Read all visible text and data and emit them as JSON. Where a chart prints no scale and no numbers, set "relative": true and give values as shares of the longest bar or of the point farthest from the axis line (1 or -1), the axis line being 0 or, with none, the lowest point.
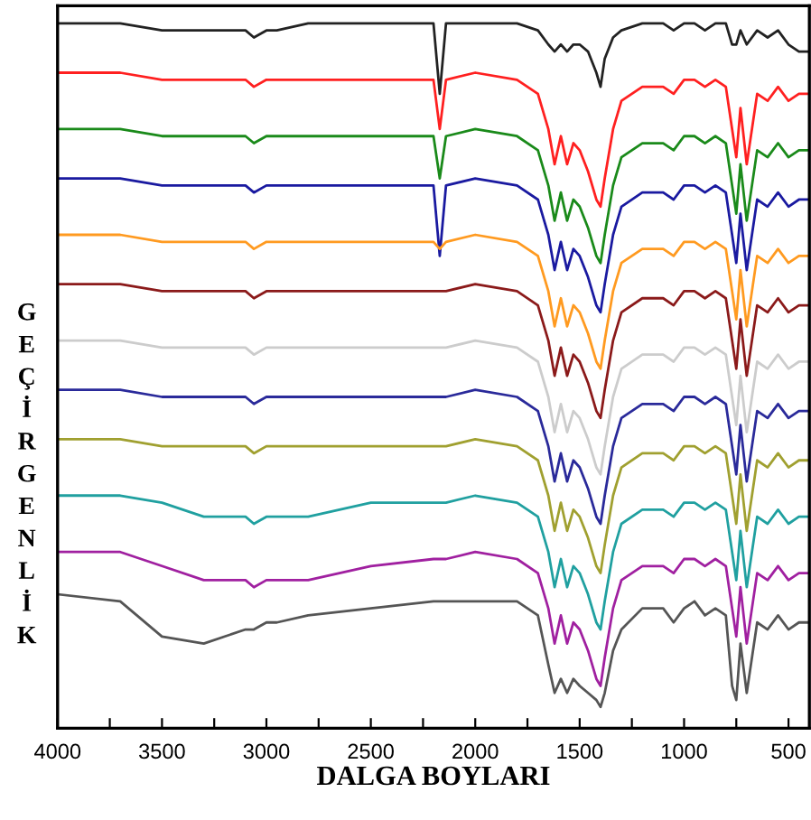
{
  "chart_data": {
    "type": "line",
    "xlabel": "DALGA BOYLARI",
    "ylabel": "GEÇİRGENLİK",
    "relative": true,
    "tick_labels": "x",
    "grid": false,
    "legend": false,
    "marker": "none",
    "line_style": "solid",
    "xlim": [
      4000,
      400
    ],
    "xticks": [
      4000,
      {
        "value": 3750,
        "label": null
      },
      3500,
      {
        "value": 3250,
        "label": null
      },
      3000,
      {
        "value": 2750,
        "label": null
      },
      2500,
      {
        "value": 2250,
        "label": null
      },
      2000,
      {
        "value": 1750,
        "label": null
      },
      1500,
      {
        "value": 1250,
        "label": null
      },
      1000,
      {
        "value": 750,
        "label": null
      },
      500
    ],
    "x": [
      4000,
      3700,
      3500,
      3300,
      3100,
      3060,
      3000,
      2950,
      2800,
      2500,
      2200,
      2170,
      2140,
      2000,
      1800,
      1700,
      1650,
      1620,
      1590,
      1560,
      1530,
      1500,
      1460,
      1420,
      1400,
      1380,
      1340,
      1300,
      1200,
      1100,
      1050,
      1000,
      950,
      900,
      850,
      800,
      770,
      750,
      730,
      700,
      650,
      600,
      550,
      500,
      450,
      410
    ],
    "series": [
      {
        "color": "#222222",
        "values": [
          1.0,
          1.0,
          0.99,
          0.99,
          0.99,
          0.98,
          0.99,
          0.99,
          1.0,
          1.0,
          1.0,
          0.9,
          1.0,
          1.0,
          1.0,
          0.99,
          0.97,
          0.96,
          0.97,
          0.96,
          0.97,
          0.97,
          0.96,
          0.93,
          0.91,
          0.95,
          0.98,
          0.99,
          1.0,
          1.0,
          0.99,
          1.0,
          1.0,
          0.99,
          1.0,
          1.0,
          0.97,
          0.97,
          0.99,
          0.97,
          0.99,
          0.98,
          0.99,
          0.97,
          0.96,
          0.96
        ]
      },
      {
        "color": "#ff2020",
        "values": [
          0.93,
          0.93,
          0.92,
          0.92,
          0.92,
          0.91,
          0.92,
          0.92,
          0.92,
          0.92,
          0.92,
          0.85,
          0.92,
          0.93,
          0.92,
          0.9,
          0.85,
          0.8,
          0.84,
          0.8,
          0.83,
          0.82,
          0.79,
          0.75,
          0.74,
          0.78,
          0.85,
          0.89,
          0.91,
          0.91,
          0.9,
          0.92,
          0.92,
          0.91,
          0.92,
          0.91,
          0.85,
          0.81,
          0.88,
          0.8,
          0.9,
          0.89,
          0.91,
          0.89,
          0.9,
          0.9
        ]
      },
      {
        "color": "#1a8a1a",
        "values": [
          0.85,
          0.85,
          0.84,
          0.84,
          0.84,
          0.83,
          0.84,
          0.84,
          0.84,
          0.84,
          0.84,
          0.78,
          0.84,
          0.85,
          0.84,
          0.82,
          0.77,
          0.72,
          0.76,
          0.72,
          0.75,
          0.74,
          0.71,
          0.67,
          0.66,
          0.7,
          0.77,
          0.81,
          0.83,
          0.83,
          0.82,
          0.84,
          0.84,
          0.83,
          0.84,
          0.83,
          0.77,
          0.73,
          0.8,
          0.72,
          0.82,
          0.81,
          0.83,
          0.81,
          0.82,
          0.82
        ]
      },
      {
        "color": "#1a1aa0",
        "values": [
          0.78,
          0.78,
          0.77,
          0.77,
          0.77,
          0.76,
          0.77,
          0.77,
          0.77,
          0.77,
          0.77,
          0.67,
          0.77,
          0.78,
          0.77,
          0.75,
          0.7,
          0.65,
          0.69,
          0.65,
          0.68,
          0.67,
          0.64,
          0.6,
          0.59,
          0.63,
          0.7,
          0.74,
          0.76,
          0.76,
          0.75,
          0.77,
          0.77,
          0.76,
          0.77,
          0.76,
          0.7,
          0.66,
          0.73,
          0.65,
          0.75,
          0.74,
          0.76,
          0.74,
          0.75,
          0.75
        ]
      },
      {
        "color": "#ff9a20",
        "values": [
          0.7,
          0.7,
          0.69,
          0.69,
          0.69,
          0.68,
          0.69,
          0.69,
          0.69,
          0.69,
          0.69,
          0.68,
          0.69,
          0.7,
          0.69,
          0.67,
          0.62,
          0.57,
          0.61,
          0.57,
          0.6,
          0.59,
          0.56,
          0.52,
          0.51,
          0.55,
          0.62,
          0.66,
          0.68,
          0.68,
          0.67,
          0.69,
          0.69,
          0.68,
          0.69,
          0.68,
          0.62,
          0.58,
          0.65,
          0.57,
          0.67,
          0.66,
          0.68,
          0.66,
          0.67,
          0.67
        ]
      },
      {
        "color": "#8b1a1a",
        "values": [
          0.63,
          0.63,
          0.62,
          0.62,
          0.62,
          0.61,
          0.62,
          0.62,
          0.62,
          0.62,
          0.62,
          0.62,
          0.62,
          0.63,
          0.62,
          0.6,
          0.55,
          0.5,
          0.54,
          0.5,
          0.53,
          0.52,
          0.49,
          0.45,
          0.44,
          0.48,
          0.55,
          0.59,
          0.61,
          0.61,
          0.6,
          0.62,
          0.62,
          0.61,
          0.62,
          0.61,
          0.55,
          0.51,
          0.58,
          0.5,
          0.6,
          0.59,
          0.61,
          0.59,
          0.6,
          0.6
        ]
      },
      {
        "color": "#cccccc",
        "values": [
          0.55,
          0.55,
          0.54,
          0.54,
          0.54,
          0.53,
          0.54,
          0.54,
          0.54,
          0.54,
          0.54,
          0.54,
          0.54,
          0.55,
          0.54,
          0.52,
          0.47,
          0.42,
          0.46,
          0.42,
          0.45,
          0.44,
          0.41,
          0.37,
          0.36,
          0.4,
          0.47,
          0.51,
          0.53,
          0.53,
          0.52,
          0.54,
          0.54,
          0.53,
          0.54,
          0.53,
          0.47,
          0.43,
          0.5,
          0.42,
          0.52,
          0.51,
          0.53,
          0.51,
          0.52,
          0.52
        ]
      },
      {
        "color": "#2a2a9a",
        "values": [
          0.48,
          0.48,
          0.47,
          0.47,
          0.47,
          0.46,
          0.47,
          0.47,
          0.47,
          0.47,
          0.47,
          0.47,
          0.47,
          0.48,
          0.47,
          0.45,
          0.4,
          0.35,
          0.39,
          0.35,
          0.38,
          0.37,
          0.34,
          0.3,
          0.29,
          0.33,
          0.4,
          0.44,
          0.46,
          0.46,
          0.45,
          0.47,
          0.47,
          0.46,
          0.47,
          0.46,
          0.4,
          0.36,
          0.43,
          0.35,
          0.45,
          0.44,
          0.46,
          0.44,
          0.45,
          0.45
        ]
      },
      {
        "color": "#a0a030",
        "values": [
          0.41,
          0.41,
          0.4,
          0.4,
          0.4,
          0.39,
          0.4,
          0.4,
          0.4,
          0.4,
          0.4,
          0.4,
          0.4,
          0.41,
          0.4,
          0.38,
          0.33,
          0.28,
          0.32,
          0.28,
          0.31,
          0.3,
          0.27,
          0.23,
          0.22,
          0.26,
          0.33,
          0.37,
          0.39,
          0.39,
          0.38,
          0.4,
          0.4,
          0.39,
          0.4,
          0.39,
          0.33,
          0.29,
          0.36,
          0.28,
          0.38,
          0.37,
          0.39,
          0.37,
          0.38,
          0.38
        ]
      },
      {
        "color": "#20a0a0",
        "values": [
          0.33,
          0.33,
          0.32,
          0.3,
          0.3,
          0.29,
          0.3,
          0.3,
          0.3,
          0.32,
          0.32,
          0.32,
          0.32,
          0.33,
          0.32,
          0.3,
          0.25,
          0.2,
          0.24,
          0.2,
          0.23,
          0.22,
          0.19,
          0.15,
          0.14,
          0.18,
          0.25,
          0.29,
          0.31,
          0.31,
          0.3,
          0.32,
          0.32,
          0.31,
          0.32,
          0.31,
          0.25,
          0.21,
          0.28,
          0.2,
          0.3,
          0.29,
          0.31,
          0.29,
          0.3,
          0.3
        ]
      },
      {
        "color": "#a020a0",
        "values": [
          0.25,
          0.25,
          0.23,
          0.21,
          0.21,
          0.2,
          0.21,
          0.21,
          0.21,
          0.23,
          0.24,
          0.24,
          0.24,
          0.25,
          0.24,
          0.22,
          0.17,
          0.12,
          0.16,
          0.12,
          0.15,
          0.14,
          0.11,
          0.07,
          0.06,
          0.1,
          0.17,
          0.21,
          0.23,
          0.23,
          0.22,
          0.24,
          0.24,
          0.23,
          0.24,
          0.23,
          0.17,
          0.13,
          0.2,
          0.12,
          0.22,
          0.21,
          0.23,
          0.21,
          0.22,
          0.22
        ]
      },
      {
        "color": "#555555",
        "values": [
          0.19,
          0.18,
          0.13,
          0.12,
          0.14,
          0.14,
          0.15,
          0.15,
          0.16,
          0.17,
          0.18,
          0.18,
          0.18,
          0.18,
          0.18,
          0.16,
          0.09,
          0.05,
          0.07,
          0.05,
          0.07,
          0.06,
          0.05,
          0.04,
          0.03,
          0.05,
          0.11,
          0.14,
          0.17,
          0.17,
          0.15,
          0.17,
          0.18,
          0.16,
          0.17,
          0.16,
          0.06,
          0.04,
          0.12,
          0.05,
          0.15,
          0.14,
          0.16,
          0.14,
          0.15,
          0.15
        ]
      }
    ]
  }
}
